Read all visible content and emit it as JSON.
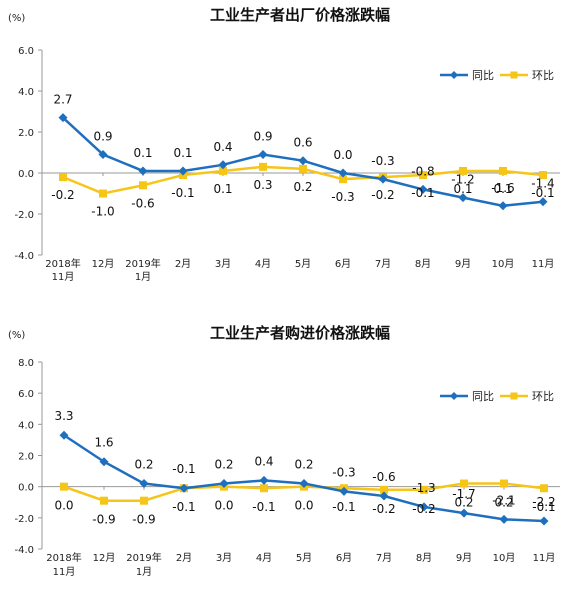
{
  "chart_data": [
    {
      "type": "line",
      "title": "工业生产者出厂价格涨跌幅",
      "ylabel": "(%)",
      "ylim": [
        -4.0,
        6.0
      ],
      "yticks": [
        "6.0",
        "4.0",
        "2.0",
        "0.0",
        "-2.0",
        "-4.0"
      ],
      "ytick_values": [
        6,
        4,
        2,
        0,
        -2,
        -4
      ],
      "grid": false,
      "legend_position": "top-right",
      "categories": [
        [
          "2018年",
          "11月"
        ],
        [
          "12月"
        ],
        [
          "2019年",
          "1月"
        ],
        [
          "2月"
        ],
        [
          "3月"
        ],
        [
          "4月"
        ],
        [
          "5月"
        ],
        [
          "6月"
        ],
        [
          "7月"
        ],
        [
          "8月"
        ],
        [
          "9月"
        ],
        [
          "10月"
        ],
        [
          "11月"
        ]
      ],
      "series": [
        {
          "name": "同比",
          "color": "#1f6fbf",
          "marker": "diamond",
          "values": [
            2.7,
            0.9,
            0.1,
            0.1,
            0.4,
            0.9,
            0.6,
            0.0,
            -0.3,
            -0.8,
            -1.2,
            -1.6,
            -1.4
          ],
          "labels": [
            "2.7",
            "0.9",
            "0.1",
            "0.1",
            "0.4",
            "0.9",
            "0.6",
            "0.0",
            "-0.3",
            "-0.8",
            "-1.2",
            "-1.6",
            "-1.4"
          ]
        },
        {
          "name": "环比",
          "color": "#f5c518",
          "marker": "square",
          "values": [
            -0.2,
            -1.0,
            -0.6,
            -0.1,
            0.1,
            0.3,
            0.2,
            -0.3,
            -0.2,
            -0.1,
            0.1,
            0.1,
            -0.1
          ],
          "labels": [
            "-0.2",
            "-1.0",
            "-0.6",
            "-0.1",
            "0.1",
            "0.3",
            "0.2",
            "-0.3",
            "-0.2",
            "-0.1",
            "0.1",
            "0.1",
            "-0.1"
          ]
        }
      ]
    },
    {
      "type": "line",
      "title": "工业生产者购进价格涨跌幅",
      "ylabel": "(%)",
      "ylim": [
        -4.0,
        8.0
      ],
      "yticks": [
        "8.0",
        "6.0",
        "4.0",
        "2.0",
        "0.0",
        "-2.0",
        "-4.0"
      ],
      "ytick_values": [
        8,
        6,
        4,
        2,
        0,
        -2,
        -4
      ],
      "grid": false,
      "legend_position": "top-right",
      "categories": [
        [
          "2018年",
          "11月"
        ],
        [
          "12月"
        ],
        [
          "2019年",
          "1月"
        ],
        [
          "2月"
        ],
        [
          "3月"
        ],
        [
          "4月"
        ],
        [
          "5月"
        ],
        [
          "6月"
        ],
        [
          "7月"
        ],
        [
          "8月"
        ],
        [
          "9月"
        ],
        [
          "10月"
        ],
        [
          "11月"
        ]
      ],
      "series": [
        {
          "name": "同比",
          "color": "#1f6fbf",
          "marker": "diamond",
          "values": [
            3.3,
            1.6,
            0.2,
            -0.1,
            0.2,
            0.4,
            0.2,
            -0.3,
            -0.6,
            -1.3,
            -1.7,
            -2.1,
            -2.2
          ],
          "labels": [
            "3.3",
            "1.6",
            "0.2",
            "-0.1",
            "0.2",
            "0.4",
            "0.2",
            "-0.3",
            "-0.6",
            "-1.3",
            "-1.7",
            "-2.1",
            "-2.2"
          ]
        },
        {
          "name": "环比",
          "color": "#f5c518",
          "marker": "square",
          "values": [
            0.0,
            -0.9,
            -0.9,
            -0.1,
            0.0,
            -0.1,
            0.0,
            -0.1,
            -0.2,
            -0.2,
            0.2,
            0.2,
            -0.1
          ],
          "labels": [
            "0.0",
            "-0.9",
            "-0.9",
            "-0.1",
            "0.0",
            "-0.1",
            "0.0",
            "-0.1",
            "-0.2",
            "-0.2",
            "0.2",
            "0.2",
            "-0.1"
          ]
        }
      ]
    }
  ]
}
